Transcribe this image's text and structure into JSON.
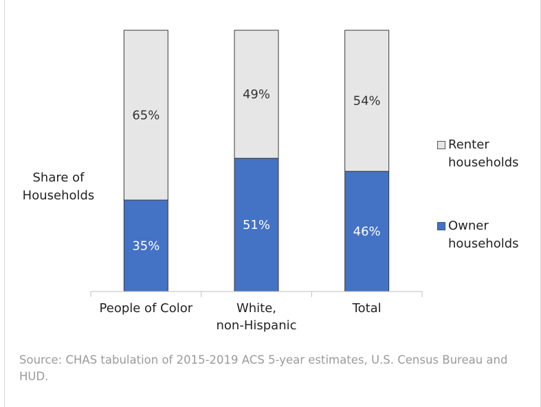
{
  "chart_data": {
    "type": "bar",
    "stacked": true,
    "percent_stacked": true,
    "ylabel": "Share of Households",
    "xlabel": "",
    "title": "",
    "ylim": [
      0,
      100
    ],
    "grid": false,
    "legend_position": "right",
    "categories": [
      "People of Color",
      "White, non-Hispanic",
      "Total"
    ],
    "series": [
      {
        "name": "Owner households",
        "values": [
          35,
          51,
          46
        ],
        "color": "#4472c4",
        "label_color": "#ffffff"
      },
      {
        "name": "Renter households",
        "values": [
          65,
          49,
          54
        ],
        "color": "#e7e6e6",
        "label_color": "#333333"
      }
    ]
  },
  "labels": {
    "ylabel_line1": "Share of",
    "ylabel_line2": "Households",
    "legend_renter_line1": "Renter",
    "legend_renter_line2": "households",
    "legend_owner_line1": "Owner",
    "legend_owner_line2": "households",
    "category_lines": [
      [
        "People of Color"
      ],
      [
        "White,",
        "non-Hispanic"
      ],
      [
        "Total"
      ]
    ]
  },
  "source": "Source: CHAS tabulation of 2015-2019 ACS 5-year estimates, U.S. Census Bureau and HUD."
}
